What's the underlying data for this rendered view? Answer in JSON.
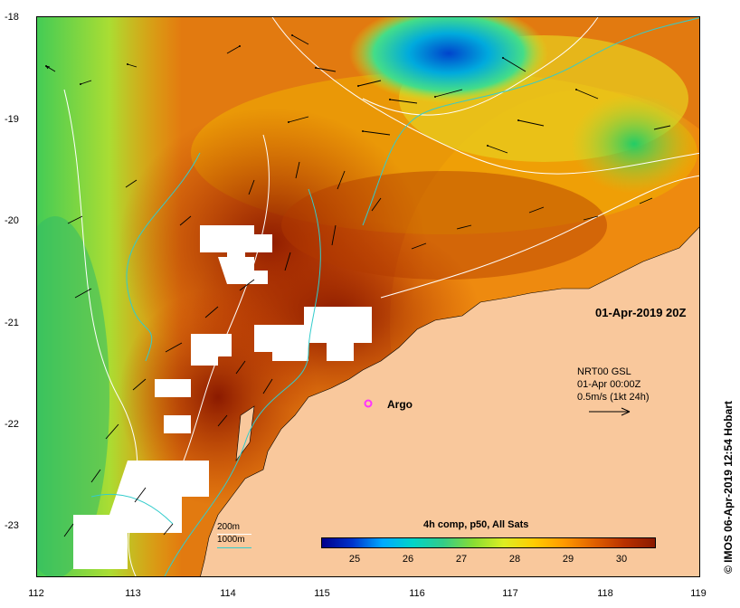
{
  "map": {
    "x_ticks": [
      "112",
      "113",
      "114",
      "115",
      "116",
      "117",
      "118",
      "119"
    ],
    "y_ticks": [
      "-18",
      "-19",
      "-20",
      "-21",
      "-22",
      "-23"
    ],
    "lon_range": [
      112,
      119
    ],
    "lat_range": [
      -18,
      -23.5
    ],
    "datetime_label": "01-Apr-2019 20Z",
    "argo_label": "Argo",
    "current_info": {
      "line1": "NRT00 GSL",
      "line2": "01-Apr 00:00Z",
      "line3": "0.5m/s (1kt 24h)"
    },
    "contour_legend": {
      "depth_200": "200m",
      "depth_1000": "1000m",
      "color_200": "#ffffff",
      "color_1000": "#33cccc"
    },
    "composite_label": "4h comp, p50, All Sats",
    "colorbar_ticks": [
      "25",
      "26",
      "27",
      "28",
      "29",
      "30"
    ],
    "credit": "© IMOS 06-Apr-2019 12:54 Hobart",
    "colors": {
      "land": "#f9c89c",
      "argo": "#ff33ff",
      "sst_warm": "#c04000",
      "sst_hot": "#8b1a00",
      "sst_cool": "#33cc66",
      "sst_cold": "#0066cc"
    }
  }
}
